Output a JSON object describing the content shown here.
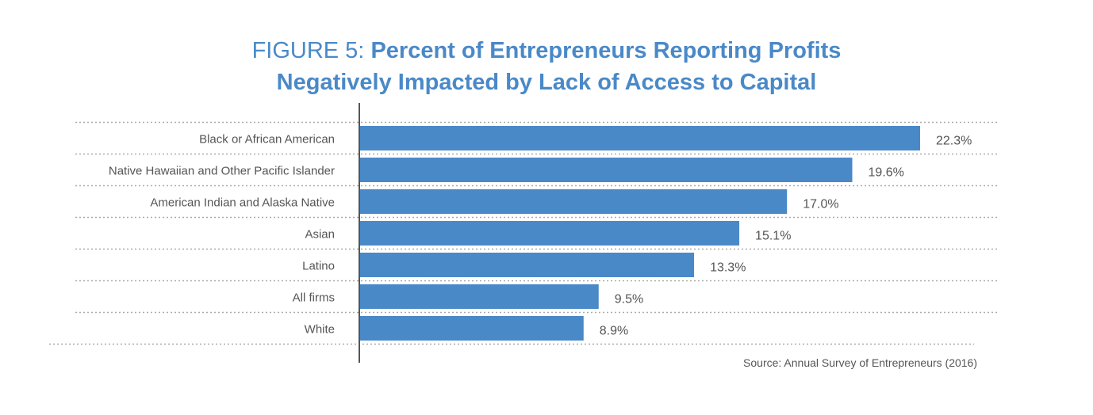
{
  "title": {
    "prefix": "FIGURE 5:",
    "bold_line1": "Percent of Entrepreneurs Reporting Profits",
    "line2": "Negatively Impacted by Lack of Access to Capital"
  },
  "source": "Source: Annual Survey of Entrepreneurs (2016)",
  "colors": {
    "bar": "#4a89c8",
    "title": "#4a89c8",
    "label": "#555555",
    "axis": "#555555",
    "grid": "#aaaaaa"
  },
  "chart_data": {
    "type": "bar",
    "orientation": "horizontal",
    "categories": [
      "Black or African American",
      "Native Hawaiian and Other Pacific Islander",
      "American Indian and Alaska Native",
      "Asian",
      "Latino",
      "All firms",
      "White"
    ],
    "values": [
      22.3,
      19.6,
      17.0,
      15.1,
      13.3,
      9.5,
      8.9
    ],
    "value_labels": [
      "22.3%",
      "19.6%",
      "17.0%",
      "15.1%",
      "13.3%",
      "9.5%",
      "8.9%"
    ],
    "unit": "%",
    "xlim": [
      0,
      22.3
    ],
    "grid": "dotted horizontal separators",
    "legend": "none"
  }
}
